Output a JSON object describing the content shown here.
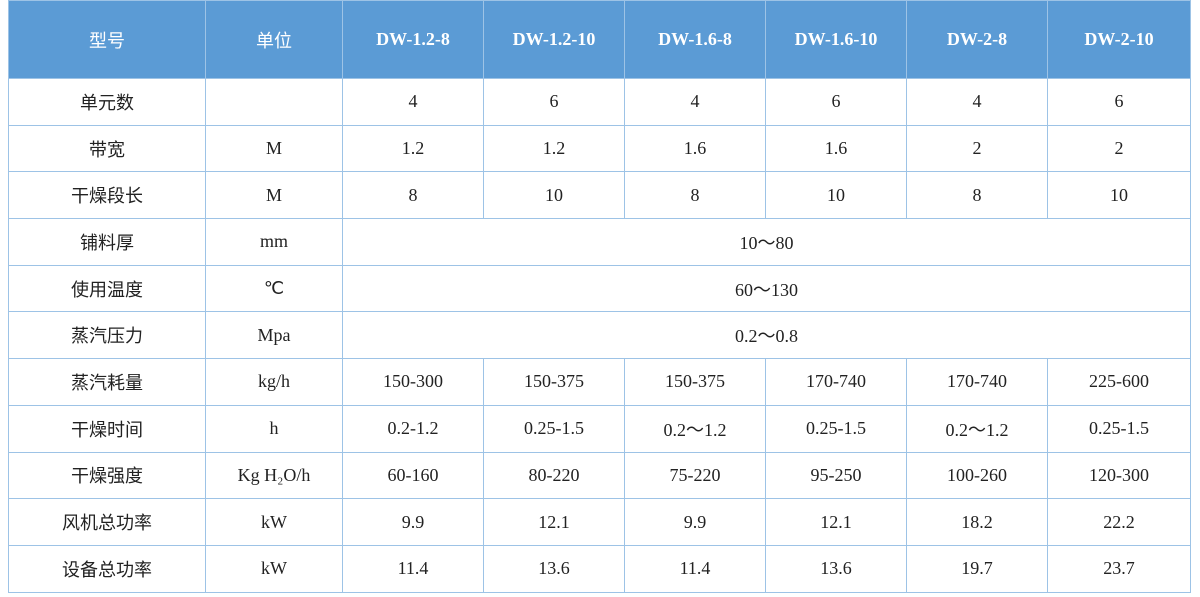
{
  "table": {
    "columns": [
      "型号",
      "单位",
      "DW-1.2-8",
      "DW-1.2-10",
      "DW-1.6-8",
      "DW-1.6-10",
      "DW-2-8",
      "DW-2-10"
    ],
    "rows": [
      {
        "name": "单元数",
        "values": [
          "4",
          "6",
          "4",
          "6",
          "4",
          "6"
        ]
      },
      {
        "name": "带宽",
        "unit": "M",
        "values": [
          "1.2",
          "1.2",
          "1.6",
          "1.6",
          "2",
          "2"
        ]
      },
      {
        "name": "干燥段长",
        "unit": "M",
        "values": [
          "8",
          "10",
          "8",
          "10",
          "8",
          "10"
        ]
      },
      {
        "name": "铺料厚",
        "unit": "mm",
        "value": "10～80"
      },
      {
        "name": "使用温度",
        "unit": "℃",
        "value": "60～130"
      },
      {
        "name": "蒸汽压力",
        "unit": "Mpa",
        "value": "0.2～0.8"
      },
      {
        "name": "蒸汽耗量",
        "unit": "kg/h",
        "values": [
          "150-300",
          "150-375",
          "150-375",
          "170-740",
          "170-740",
          "225-600"
        ]
      },
      {
        "name": "干燥时间",
        "unit": "h",
        "values": [
          "0.2-1.2",
          "0.25-1.5",
          "0.2～1.2",
          "0.25-1.5",
          "0.2～1.2",
          "0.25-1.5"
        ]
      },
      {
        "name": "干燥强度",
        "unit": "Kg H₂O/h",
        "values": [
          "60-160",
          "80-220",
          "75-220",
          "95-250",
          "100-260",
          "120-300"
        ]
      },
      {
        "name": "风机总功率",
        "unit": "kW",
        "values": [
          "9.9",
          "12.1",
          "9.9",
          "12.1",
          "18.2",
          "22.2"
        ]
      },
      {
        "name": "设备总功率",
        "unit": "kW",
        "values": [
          "11.4",
          "13.6",
          "11.4",
          "13.6",
          "19.7",
          "23.7"
        ]
      }
    ]
  }
}
